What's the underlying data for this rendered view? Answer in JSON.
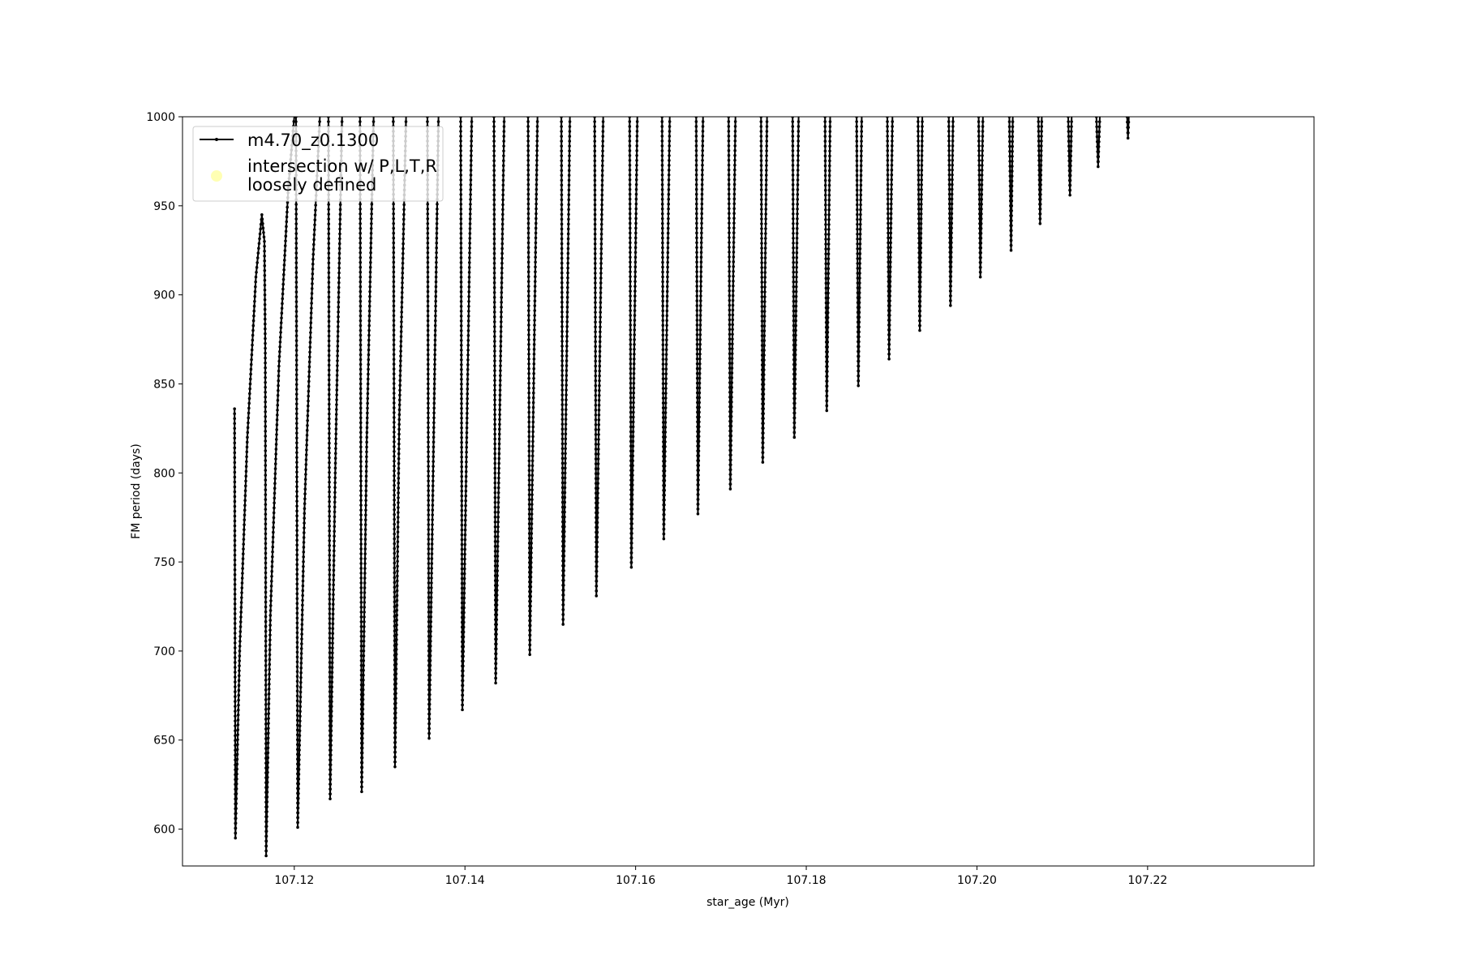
{
  "chart_data": {
    "type": "line",
    "xlabel": "star_age (Myr)",
    "ylabel": "FM period (days)",
    "xlim": [
      107.1069,
      107.2395
    ],
    "ylim": [
      579.3,
      1000
    ],
    "xticks": [
      "107.12",
      "107.14",
      "107.16",
      "107.18",
      "107.20",
      "107.22"
    ],
    "xtick_values": [
      107.12,
      107.14,
      107.16,
      107.18,
      107.2,
      107.22
    ],
    "yticks": [
      "600",
      "650",
      "700",
      "750",
      "800",
      "850",
      "900",
      "950",
      "1000"
    ],
    "ytick_values": [
      600,
      650,
      700,
      750,
      800,
      850,
      900,
      950,
      1000
    ],
    "grid": false,
    "legend_position": "top-left",
    "legend": [
      {
        "label": "m4.70_z0.1300",
        "marker": "line-with-dot",
        "color": "#000000"
      },
      {
        "label_lines": [
          "intersection w/ P,L,T,R",
          "loosely defined"
        ],
        "marker": "circle",
        "color": "#ffffa0"
      }
    ],
    "series": [
      {
        "name": "m4.70_z0.1300",
        "color": "#000000",
        "segments": [
          [
            [
              107.113,
              836
            ],
            [
              107.1131,
              595
            ],
            [
              107.1136,
              700
            ],
            [
              107.1145,
              820
            ],
            [
              107.1155,
              910
            ],
            [
              107.1162,
              945
            ],
            [
              107.1165,
              930
            ],
            [
              107.1166,
              870
            ],
            [
              107.1167,
              585
            ],
            [
              107.1172,
              720
            ],
            [
              107.1182,
              860
            ],
            [
              107.1193,
              960
            ],
            [
              107.12,
              1000
            ]
          ],
          [
            [
              107.1202,
              1000
            ],
            [
              107.1204,
              601
            ],
            [
              107.1212,
              780
            ],
            [
              107.1222,
              920
            ],
            [
              107.123,
              1000
            ]
          ],
          [
            [
              107.124,
              1000
            ],
            [
              107.1242,
              617
            ],
            [
              107.1248,
              800
            ],
            [
              107.1256,
              1000
            ]
          ],
          [
            [
              107.1277,
              1000
            ],
            [
              107.1279,
              621
            ],
            [
              107.1285,
              820
            ],
            [
              107.1293,
              1000
            ]
          ],
          [
            [
              107.1316,
              1000
            ],
            [
              107.1318,
              635
            ],
            [
              107.1323,
              830
            ],
            [
              107.1331,
              1000
            ]
          ],
          [
            [
              107.1356,
              1000
            ],
            [
              107.1358,
              651
            ],
            [
              107.1369,
              1000
            ]
          ],
          [
            [
              107.1395,
              1000
            ],
            [
              107.1397,
              667
            ],
            [
              107.1408,
              1000
            ]
          ],
          [
            [
              107.1434,
              1000
            ],
            [
              107.1436,
              682
            ],
            [
              107.1446,
              1000
            ]
          ],
          [
            [
              107.1474,
              1000
            ],
            [
              107.1476,
              698
            ],
            [
              107.1485,
              1000
            ]
          ],
          [
            [
              107.1513,
              1000
            ],
            [
              107.1515,
              715
            ],
            [
              107.1523,
              1000
            ]
          ],
          [
            [
              107.1552,
              1000
            ],
            [
              107.1554,
              731
            ],
            [
              107.1562,
              1000
            ]
          ],
          [
            [
              107.1593,
              1000
            ],
            [
              107.1595,
              747
            ],
            [
              107.1602,
              1000
            ]
          ],
          [
            [
              107.1631,
              1000
            ],
            [
              107.1633,
              763
            ],
            [
              107.164,
              1000
            ]
          ],
          [
            [
              107.1671,
              1000
            ],
            [
              107.1673,
              777
            ],
            [
              107.1679,
              1000
            ]
          ],
          [
            [
              107.1709,
              1000
            ],
            [
              107.1711,
              791
            ],
            [
              107.1717,
              1000
            ]
          ],
          [
            [
              107.1747,
              1000
            ],
            [
              107.1749,
              806
            ],
            [
              107.1754,
              1000
            ]
          ],
          [
            [
              107.1784,
              1000
            ],
            [
              107.1786,
              820
            ],
            [
              107.1791,
              1000
            ]
          ],
          [
            [
              107.1822,
              1000
            ],
            [
              107.1824,
              835
            ],
            [
              107.1828,
              1000
            ]
          ],
          [
            [
              107.1859,
              1000
            ],
            [
              107.1861,
              849
            ],
            [
              107.1865,
              1000
            ]
          ],
          [
            [
              107.1895,
              1000
            ],
            [
              107.1897,
              864
            ],
            [
              107.1901,
              1000
            ]
          ],
          [
            [
              107.1931,
              1000
            ],
            [
              107.1933,
              880
            ],
            [
              107.1936,
              1000
            ]
          ],
          [
            [
              107.1967,
              1000
            ],
            [
              107.1969,
              894
            ],
            [
              107.1972,
              1000
            ]
          ],
          [
            [
              107.2002,
              1000
            ],
            [
              107.2004,
              910
            ],
            [
              107.2007,
              1000
            ]
          ],
          [
            [
              107.2038,
              1000
            ],
            [
              107.204,
              925
            ],
            [
              107.2042,
              1000
            ]
          ],
          [
            [
              107.2072,
              1000
            ],
            [
              107.2074,
              940
            ],
            [
              107.2076,
              1000
            ]
          ],
          [
            [
              107.2107,
              1000
            ],
            [
              107.2109,
              956
            ],
            [
              107.2111,
              1000
            ]
          ],
          [
            [
              107.214,
              1000
            ],
            [
              107.2142,
              972
            ],
            [
              107.2144,
              1000
            ]
          ],
          [
            [
              107.2176,
              1000
            ],
            [
              107.2177,
              988
            ],
            [
              107.2178,
              1000
            ]
          ]
        ]
      }
    ]
  }
}
